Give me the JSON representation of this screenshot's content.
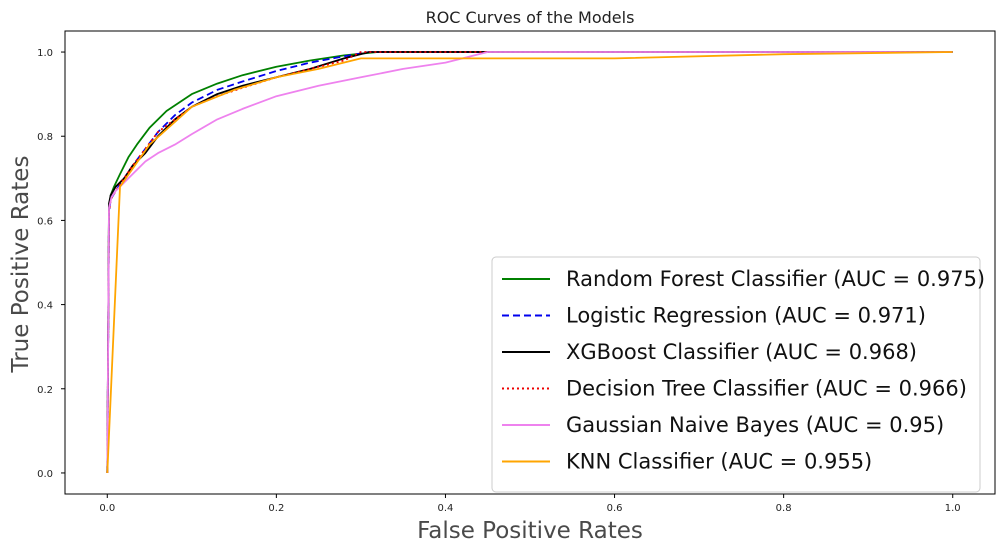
{
  "chart_data": {
    "type": "line",
    "title": "ROC Curves of the Models",
    "xlabel": "False Positive Rates",
    "ylabel": "True Positive Rates",
    "xlim": [
      -0.05,
      1.05
    ],
    "ylim": [
      -0.05,
      1.05
    ],
    "xticks": [
      0.0,
      0.2,
      0.4,
      0.6,
      0.8,
      1.0
    ],
    "yticks": [
      0.0,
      0.2,
      0.4,
      0.6,
      0.8,
      1.0
    ],
    "tick_labels": [
      "0.0",
      "0.2",
      "0.4",
      "0.6",
      "0.8",
      "1.0"
    ],
    "grid": false,
    "legend_position": "lower-right",
    "series": [
      {
        "name": "Random Forest Classifier (AUC = 0.975)",
        "color": "#008000",
        "dash": "solid",
        "x": [
          0,
          0.002,
          0.004,
          0.008,
          0.015,
          0.025,
          0.035,
          0.05,
          0.07,
          0.1,
          0.13,
          0.16,
          0.2,
          0.24,
          0.28,
          0.32,
          0.5,
          0.8,
          1.0
        ],
        "y": [
          0,
          0.63,
          0.66,
          0.68,
          0.71,
          0.75,
          0.78,
          0.82,
          0.86,
          0.9,
          0.925,
          0.945,
          0.965,
          0.98,
          0.992,
          1.0,
          1.0,
          1.0,
          1.0
        ]
      },
      {
        "name": "Logistic Regression (AUC = 0.971)",
        "color": "#0000ee",
        "dash": "dashed",
        "x": [
          0,
          0.002,
          0.004,
          0.01,
          0.02,
          0.03,
          0.045,
          0.06,
          0.08,
          0.1,
          0.13,
          0.16,
          0.2,
          0.24,
          0.28,
          0.31,
          0.5,
          0.8,
          1.0
        ],
        "y": [
          0,
          0.62,
          0.65,
          0.67,
          0.7,
          0.73,
          0.77,
          0.81,
          0.85,
          0.88,
          0.91,
          0.93,
          0.955,
          0.975,
          0.99,
          1.0,
          1.0,
          1.0,
          1.0
        ]
      },
      {
        "name": "XGBoost Classifier (AUC = 0.968)",
        "color": "#000000",
        "dash": "solid",
        "x": [
          0,
          0.002,
          0.004,
          0.01,
          0.02,
          0.03,
          0.045,
          0.06,
          0.08,
          0.1,
          0.13,
          0.16,
          0.2,
          0.24,
          0.28,
          0.31,
          0.5,
          0.8,
          1.0
        ],
        "y": [
          0,
          0.64,
          0.66,
          0.68,
          0.7,
          0.73,
          0.76,
          0.8,
          0.84,
          0.87,
          0.9,
          0.92,
          0.94,
          0.96,
          0.985,
          1.0,
          1.0,
          1.0,
          1.0
        ]
      },
      {
        "name": "Decision Tree Classifier (AUC = 0.966)",
        "color": "#ee0000",
        "dash": "dotted",
        "x": [
          0,
          0.002,
          0.004,
          0.01,
          0.02,
          0.03,
          0.045,
          0.06,
          0.08,
          0.1,
          0.13,
          0.16,
          0.2,
          0.24,
          0.28,
          0.3,
          0.5,
          0.8,
          1.0
        ],
        "y": [
          0,
          0.62,
          0.65,
          0.67,
          0.7,
          0.73,
          0.77,
          0.81,
          0.84,
          0.87,
          0.895,
          0.915,
          0.94,
          0.96,
          0.98,
          1.0,
          1.0,
          1.0,
          1.0
        ]
      },
      {
        "name": "Gaussian Naive Bayes (AUC = 0.95)",
        "color": "#ee82ee",
        "dash": "solid",
        "x": [
          0,
          0.002,
          0.005,
          0.01,
          0.02,
          0.03,
          0.045,
          0.06,
          0.08,
          0.1,
          0.13,
          0.16,
          0.2,
          0.25,
          0.3,
          0.35,
          0.4,
          0.45,
          0.6,
          0.8,
          1.0
        ],
        "y": [
          0,
          0.63,
          0.655,
          0.67,
          0.69,
          0.71,
          0.74,
          0.76,
          0.78,
          0.805,
          0.84,
          0.865,
          0.895,
          0.92,
          0.94,
          0.96,
          0.975,
          1.0,
          1.0,
          1.0,
          1.0
        ]
      },
      {
        "name": "KNN Classifier (AUC = 0.955)",
        "color": "#ffa500",
        "dash": "solid",
        "x": [
          0,
          0.015,
          0.05,
          0.1,
          0.15,
          0.2,
          0.25,
          0.3,
          0.6,
          0.8,
          1.0
        ],
        "y": [
          0,
          0.68,
          0.78,
          0.87,
          0.91,
          0.94,
          0.96,
          0.985,
          0.985,
          0.995,
          1.0
        ]
      }
    ]
  }
}
